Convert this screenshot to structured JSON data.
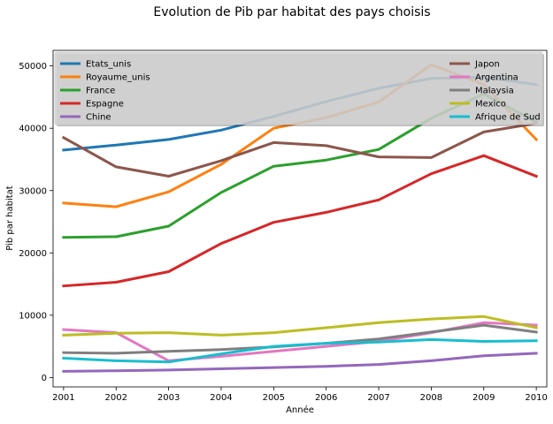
{
  "chart_data": {
    "type": "line",
    "title": "Evolution de Pib par habitat des pays choisis",
    "xlabel": "Année",
    "ylabel": "Pib par habitat",
    "x": [
      2001,
      2002,
      2003,
      2004,
      2005,
      2006,
      2007,
      2008,
      2009,
      2010
    ],
    "xlim": [
      2000.8,
      2010.2
    ],
    "ylim": [
      -1500,
      52500
    ],
    "yticks": [
      0,
      10000,
      20000,
      30000,
      40000,
      50000
    ],
    "grid": false,
    "legend_placement": "top",
    "series": [
      {
        "name": "Etats_unis",
        "color": "#1f77b4",
        "values": [
          36500,
          37300,
          38200,
          39700,
          41900,
          44300,
          46400,
          48000,
          48200,
          47000
        ]
      },
      {
        "name": "Royaume_unis",
        "color": "#ff7f0e",
        "values": [
          28000,
          27400,
          29800,
          34200,
          40000,
          41700,
          44200,
          50200,
          47000,
          38200
        ]
      },
      {
        "name": "France",
        "color": "#2ca02c",
        "values": [
          22500,
          22600,
          24300,
          29700,
          33900,
          34900,
          36600,
          41600,
          45500,
          41000
        ]
      },
      {
        "name": "Espagne",
        "color": "#d62728",
        "values": [
          14700,
          15300,
          17000,
          21500,
          24900,
          26500,
          28500,
          32700,
          35600,
          32300
        ]
      },
      {
        "name": "Chine",
        "color": "#9467bd",
        "values": [
          1000,
          1100,
          1200,
          1400,
          1600,
          1800,
          2100,
          2700,
          3500,
          3900
        ]
      },
      {
        "name": "Japon",
        "color": "#8c564b",
        "values": [
          38500,
          33800,
          32300,
          34800,
          37700,
          37200,
          35400,
          35300,
          39400,
          40800
        ]
      },
      {
        "name": "Argentina",
        "color": "#e377c2",
        "values": [
          7700,
          7200,
          2700,
          3400,
          4200,
          5000,
          5800,
          7200,
          8800,
          8400
        ]
      },
      {
        "name": "Malaysia",
        "color": "#7f7f7f",
        "values": [
          4000,
          3900,
          4200,
          4500,
          4900,
          5500,
          6200,
          7300,
          8400,
          7300
        ]
      },
      {
        "name": "Mexico",
        "color": "#bcbd22",
        "values": [
          6800,
          7100,
          7200,
          6800,
          7200,
          8000,
          8800,
          9400,
          9800,
          8000
        ]
      },
      {
        "name": "Afrique de Sud",
        "color": "#17becf",
        "values": [
          3100,
          2700,
          2500,
          3800,
          5000,
          5500,
          5700,
          6100,
          5800,
          5900
        ]
      }
    ]
  }
}
